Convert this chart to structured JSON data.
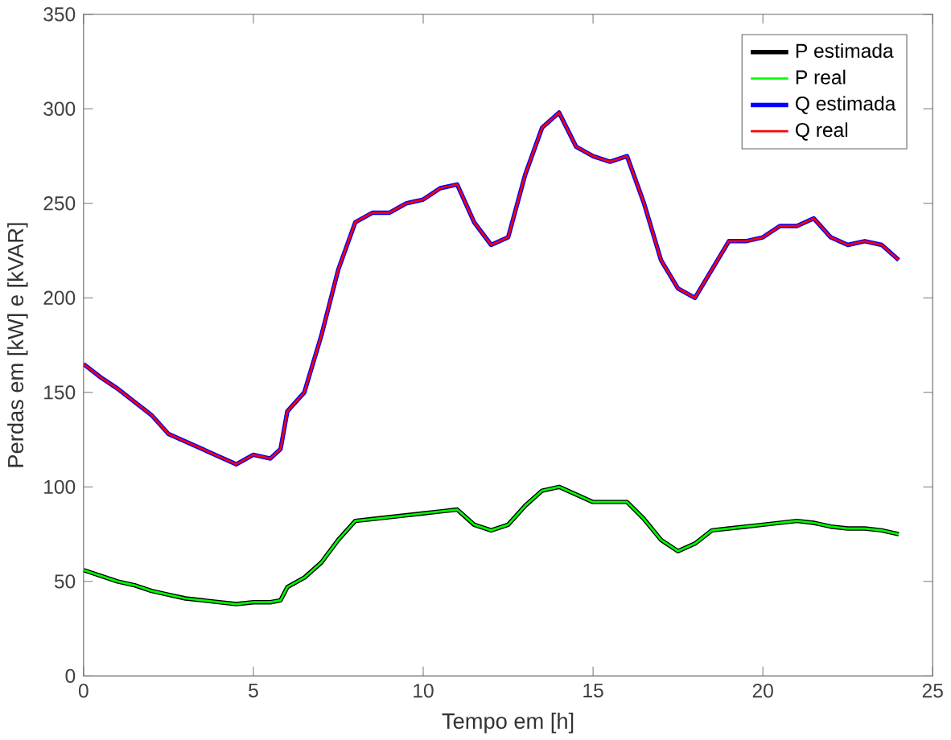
{
  "chart_data": {
    "type": "line",
    "xlabel": "Tempo em [h]",
    "ylabel": "Perdas em [kW] e [kVAR]",
    "xlim": [
      0,
      25
    ],
    "ylim": [
      0,
      350
    ],
    "xticks": [
      0,
      5,
      10,
      15,
      20,
      25
    ],
    "yticks": [
      0,
      50,
      100,
      150,
      200,
      250,
      300,
      350
    ],
    "legend": "top right",
    "grid": false,
    "x": [
      0,
      0.5,
      1,
      1.5,
      2,
      2.5,
      3,
      3.5,
      4,
      4.5,
      5,
      5.5,
      5.8,
      6,
      6.5,
      7,
      7.5,
      8,
      8.5,
      9,
      9.5,
      10,
      10.5,
      11,
      11.5,
      12,
      12.5,
      13,
      13.5,
      14,
      14.5,
      15,
      15.5,
      16,
      16.5,
      17,
      17.5,
      18,
      18.5,
      19,
      19.5,
      20,
      20.5,
      21,
      21.5,
      22,
      22.5,
      23,
      23.5,
      24
    ],
    "series": [
      {
        "name": "P estimada",
        "color": "#000000",
        "values": [
          56,
          53,
          50,
          48,
          45,
          43,
          41,
          40,
          39,
          38,
          39,
          39,
          40,
          47,
          52,
          60,
          72,
          82,
          83,
          84,
          85,
          86,
          87,
          88,
          80,
          77,
          80,
          90,
          98,
          100,
          96,
          92,
          92,
          92,
          83,
          72,
          66,
          70,
          77,
          78,
          79,
          80,
          81,
          82,
          81,
          79,
          78,
          78,
          77,
          75
        ]
      },
      {
        "name": "P real",
        "color": "#00ff00",
        "values": [
          56,
          53,
          50,
          48,
          45,
          43,
          41,
          40,
          39,
          38,
          39,
          39,
          40,
          47,
          52,
          60,
          72,
          82,
          83,
          84,
          85,
          86,
          87,
          88,
          80,
          77,
          80,
          90,
          98,
          100,
          96,
          92,
          92,
          92,
          83,
          72,
          66,
          70,
          77,
          78,
          79,
          80,
          81,
          82,
          81,
          79,
          78,
          78,
          77,
          75
        ]
      },
      {
        "name": "Q estimada",
        "color": "#0000ff",
        "values": [
          165,
          158,
          152,
          145,
          138,
          128,
          124,
          120,
          116,
          112,
          117,
          115,
          120,
          140,
          150,
          180,
          215,
          240,
          245,
          245,
          250,
          252,
          258,
          260,
          240,
          228,
          232,
          265,
          290,
          298,
          280,
          275,
          272,
          275,
          250,
          220,
          205,
          200,
          215,
          230,
          230,
          232,
          238,
          238,
          242,
          232,
          228,
          230,
          228,
          220
        ]
      },
      {
        "name": "Q real",
        "color": "#ff0000",
        "values": [
          165,
          158,
          152,
          145,
          138,
          128,
          124,
          120,
          116,
          112,
          117,
          115,
          120,
          140,
          150,
          180,
          215,
          240,
          245,
          245,
          250,
          252,
          258,
          260,
          240,
          228,
          232,
          265,
          290,
          298,
          280,
          275,
          272,
          275,
          250,
          220,
          205,
          200,
          215,
          230,
          230,
          232,
          238,
          238,
          242,
          232,
          228,
          230,
          228,
          220
        ]
      }
    ]
  }
}
